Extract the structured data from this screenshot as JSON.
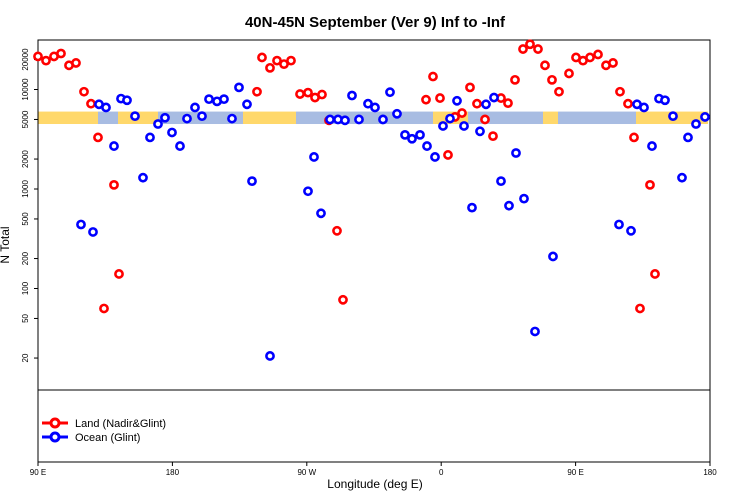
{
  "chart_data": {
    "type": "scatter",
    "title": "40N-45N September (Ver 9)   Inf to -Inf",
    "xlabel": "Longitude (deg E)",
    "ylabel": "N Total",
    "y_scale": "log",
    "x_ticks": [
      "90 E",
      "180",
      "90 W",
      "0",
      "90 E",
      "180"
    ],
    "y_ticks": [
      "20000",
      "10000",
      "5000",
      "2000",
      "1000",
      "500",
      "200",
      "100",
      "50",
      "20"
    ],
    "band_y": [
      4500,
      6000
    ],
    "band_colors": {
      "ocean": "#a8bce2",
      "land": "#ffd86b"
    },
    "band_pattern": [
      [
        0,
        60,
        "land"
      ],
      [
        60,
        80,
        "ocean"
      ],
      [
        80,
        120,
        "land"
      ],
      [
        120,
        205,
        "ocean"
      ],
      [
        205,
        258,
        "land"
      ],
      [
        258,
        395,
        "ocean"
      ],
      [
        395,
        430,
        "land"
      ],
      [
        430,
        505,
        "ocean"
      ],
      [
        505,
        520,
        "land"
      ],
      [
        520,
        598,
        "ocean"
      ],
      [
        598,
        670,
        "land"
      ]
    ],
    "series": [
      {
        "name": "Land (Nadir&Glint)",
        "color": "#ff0000",
        "points": [
          [
            0,
            21500
          ],
          [
            8,
            19500
          ],
          [
            16,
            21500
          ],
          [
            23,
            23000
          ],
          [
            31,
            17500
          ],
          [
            38,
            18500
          ],
          [
            46,
            9500
          ],
          [
            53,
            7200
          ],
          [
            60,
            3300
          ],
          [
            66,
            63
          ],
          [
            76,
            1100
          ],
          [
            81,
            140
          ],
          [
            219,
            9500
          ],
          [
            224,
            21000
          ],
          [
            232,
            16500
          ],
          [
            239,
            19500
          ],
          [
            246,
            18000
          ],
          [
            253,
            19500
          ],
          [
            262,
            9000
          ],
          [
            270,
            9300
          ],
          [
            277,
            8300
          ],
          [
            284,
            8900
          ],
          [
            291,
            4900
          ],
          [
            299,
            380
          ],
          [
            305,
            77
          ],
          [
            388,
            7900
          ],
          [
            395,
            13500
          ],
          [
            402,
            8200
          ],
          [
            410,
            2200
          ],
          [
            417,
            5300
          ],
          [
            424,
            5800
          ],
          [
            432,
            10500
          ],
          [
            439,
            7200
          ],
          [
            447,
            5000
          ],
          [
            455,
            3400
          ],
          [
            463,
            8200
          ],
          [
            470,
            7300
          ],
          [
            477,
            12500
          ],
          [
            485,
            25500
          ],
          [
            492,
            28500
          ],
          [
            500,
            25500
          ],
          [
            507,
            17500
          ],
          [
            514,
            12500
          ],
          [
            521,
            9500
          ],
          [
            531,
            14500
          ],
          [
            538,
            21000
          ],
          [
            545,
            19500
          ],
          [
            552,
            21000
          ],
          [
            560,
            22500
          ],
          [
            568,
            17500
          ],
          [
            575,
            18500
          ],
          [
            582,
            9500
          ],
          [
            590,
            7200
          ],
          [
            596,
            3300
          ],
          [
            602,
            63
          ],
          [
            612,
            1100
          ],
          [
            617,
            140
          ]
        ]
      },
      {
        "name": "Ocean (Glint)",
        "color": "#0000ff",
        "points": [
          [
            43,
            440
          ],
          [
            55,
            370
          ],
          [
            61,
            7100
          ],
          [
            68,
            6600
          ],
          [
            76,
            2700
          ],
          [
            83,
            8100
          ],
          [
            89,
            7800
          ],
          [
            97,
            5400
          ],
          [
            105,
            1300
          ],
          [
            112,
            3300
          ],
          [
            120,
            4500
          ],
          [
            127,
            5200
          ],
          [
            134,
            3700
          ],
          [
            142,
            2700
          ],
          [
            149,
            5100
          ],
          [
            157,
            6600
          ],
          [
            164,
            5400
          ],
          [
            171,
            8000
          ],
          [
            179,
            7600
          ],
          [
            186,
            8000
          ],
          [
            194,
            5100
          ],
          [
            201,
            10500
          ],
          [
            209,
            7100
          ],
          [
            214,
            1200
          ],
          [
            232,
            21
          ],
          [
            270,
            950
          ],
          [
            276,
            2100
          ],
          [
            283,
            570
          ],
          [
            292,
            5000
          ],
          [
            300,
            5000
          ],
          [
            307,
            4900
          ],
          [
            314,
            8700
          ],
          [
            321,
            5000
          ],
          [
            330,
            7200
          ],
          [
            337,
            6600
          ],
          [
            345,
            5000
          ],
          [
            352,
            9400
          ],
          [
            359,
            5700
          ],
          [
            367,
            3500
          ],
          [
            374,
            3200
          ],
          [
            382,
            3500
          ],
          [
            389,
            2700
          ],
          [
            397,
            2100
          ],
          [
            405,
            4300
          ],
          [
            412,
            5100
          ],
          [
            419,
            7700
          ],
          [
            426,
            4300
          ],
          [
            434,
            650
          ],
          [
            442,
            3800
          ],
          [
            448,
            7100
          ],
          [
            456,
            8300
          ],
          [
            463,
            1200
          ],
          [
            471,
            680
          ],
          [
            478,
            2300
          ],
          [
            486,
            800
          ],
          [
            497,
            37
          ],
          [
            515,
            210
          ],
          [
            581,
            440
          ],
          [
            593,
            380
          ],
          [
            599,
            7100
          ],
          [
            606,
            6600
          ],
          [
            614,
            2700
          ],
          [
            621,
            8100
          ],
          [
            627,
            7800
          ],
          [
            635,
            5400
          ],
          [
            644,
            1300
          ],
          [
            650,
            3300
          ],
          [
            658,
            4500
          ],
          [
            667,
            5300
          ]
        ]
      }
    ]
  }
}
